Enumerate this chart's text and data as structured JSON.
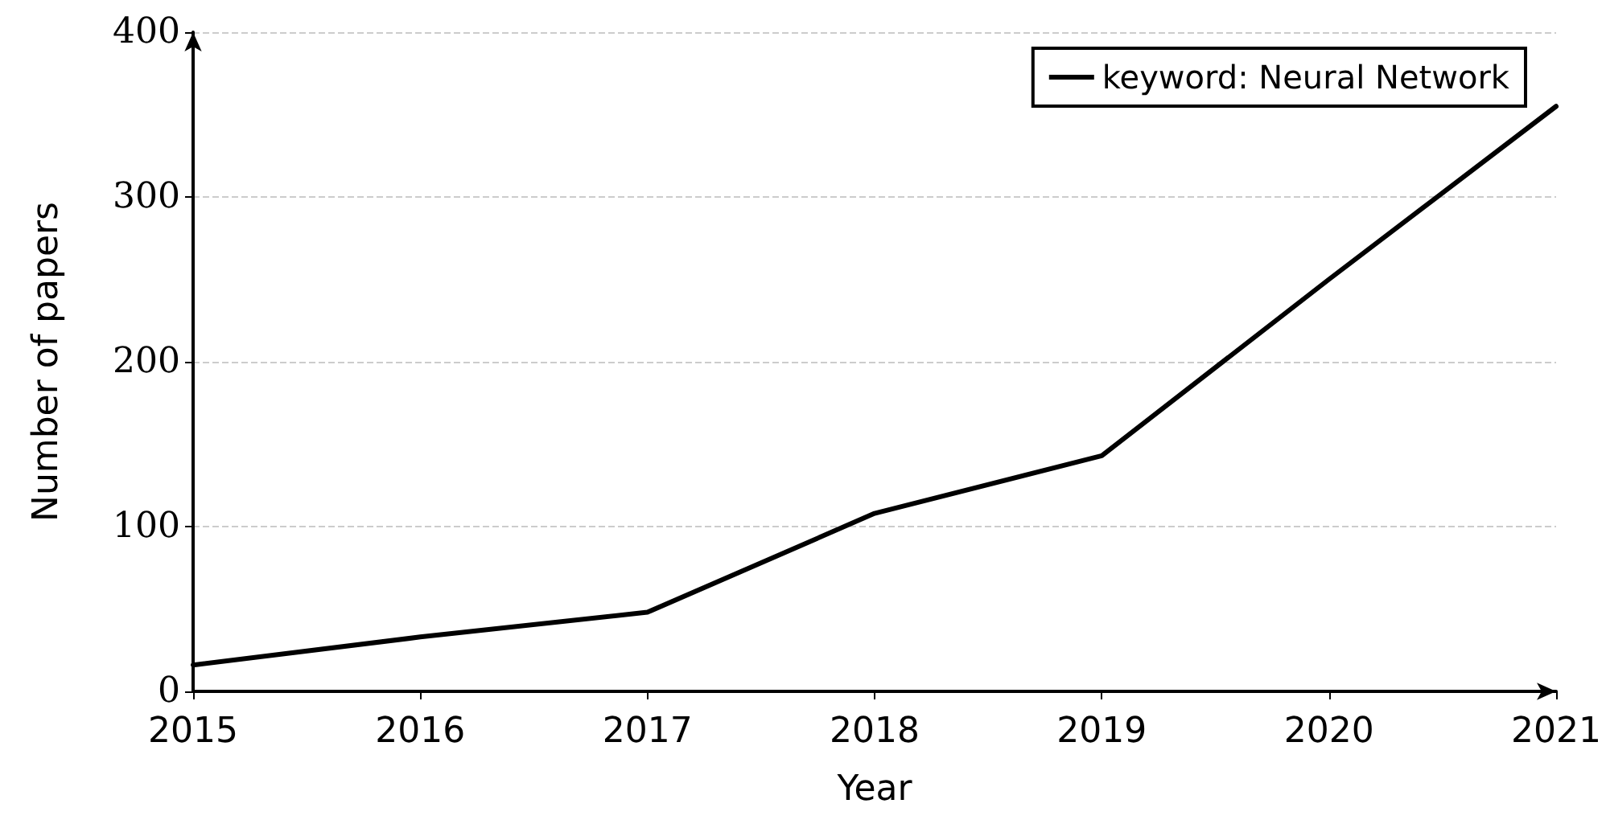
{
  "chart_data": {
    "type": "line",
    "xlabel": "Year",
    "ylabel": "Number of papers",
    "x": [
      2015,
      2016,
      2017,
      2018,
      2019,
      2020,
      2021
    ],
    "series": [
      {
        "name": "keyword: Neural Network",
        "color": "#000000",
        "values": [
          16,
          33,
          48,
          108,
          143,
          250,
          355
        ]
      }
    ],
    "xlim": [
      2015,
      2021
    ],
    "xticks": [
      2015,
      2016,
      2017,
      2018,
      2019,
      2020,
      2021
    ],
    "ylim": [
      0,
      400
    ],
    "yticks": [
      0,
      100,
      200,
      300,
      400
    ],
    "grid": "y",
    "legend": "top right",
    "marker": "none",
    "line_style": "solid"
  }
}
